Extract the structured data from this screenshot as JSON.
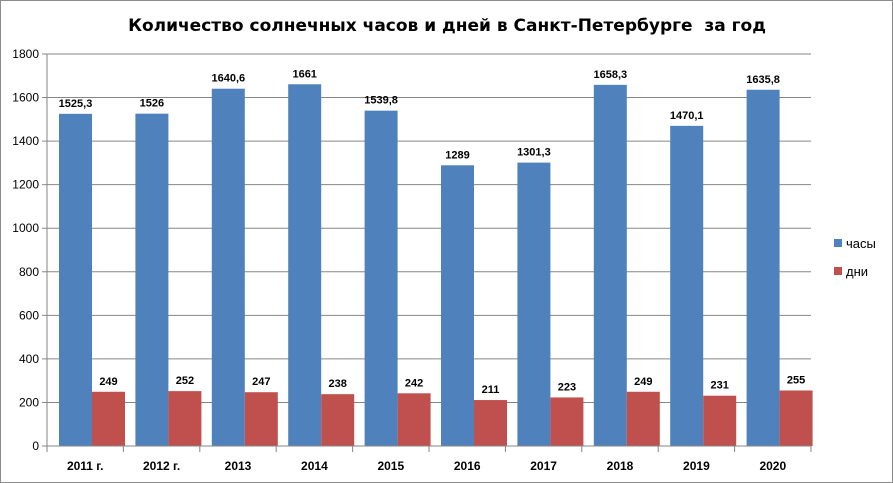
{
  "chart_data": {
    "type": "bar",
    "title": "Количество солнечных часов и дней в Санкт-Петербурге  за год",
    "xlabel": "",
    "ylabel": "",
    "categories": [
      "2011 г.",
      "2012 г.",
      "2013",
      "2014",
      "2015",
      "2016",
      "2017",
      "2018",
      "2019",
      "2020"
    ],
    "series": [
      {
        "name": "часы",
        "color": "#4f81bd",
        "values": [
          1525.3,
          1526,
          1640.6,
          1661,
          1539.8,
          1289,
          1301.3,
          1658.3,
          1470.1,
          1635.8
        ],
        "labels": [
          "1525,3",
          "1526",
          "1640,6",
          "1661",
          "1539,8",
          "1289",
          "1301,3",
          "1658,3",
          "1470,1",
          "1635,8"
        ]
      },
      {
        "name": "дни",
        "color": "#c0504d",
        "values": [
          249,
          252,
          247,
          238,
          242,
          211,
          223,
          249,
          231,
          255
        ],
        "labels": [
          "249",
          "252",
          "247",
          "238",
          "242",
          "211",
          "223",
          "249",
          "231",
          "255"
        ]
      }
    ],
    "ylim": [
      0,
      1800
    ],
    "yticks": [
      0,
      200,
      400,
      600,
      800,
      1000,
      1200,
      1400,
      1600,
      1800
    ],
    "ytick_labels": [
      "0",
      "200",
      "400",
      "600",
      "800",
      "1000",
      "1200",
      "1400",
      "1600",
      "1800"
    ],
    "grid": true,
    "gridline_color": "#868686",
    "legend_position": "right"
  }
}
